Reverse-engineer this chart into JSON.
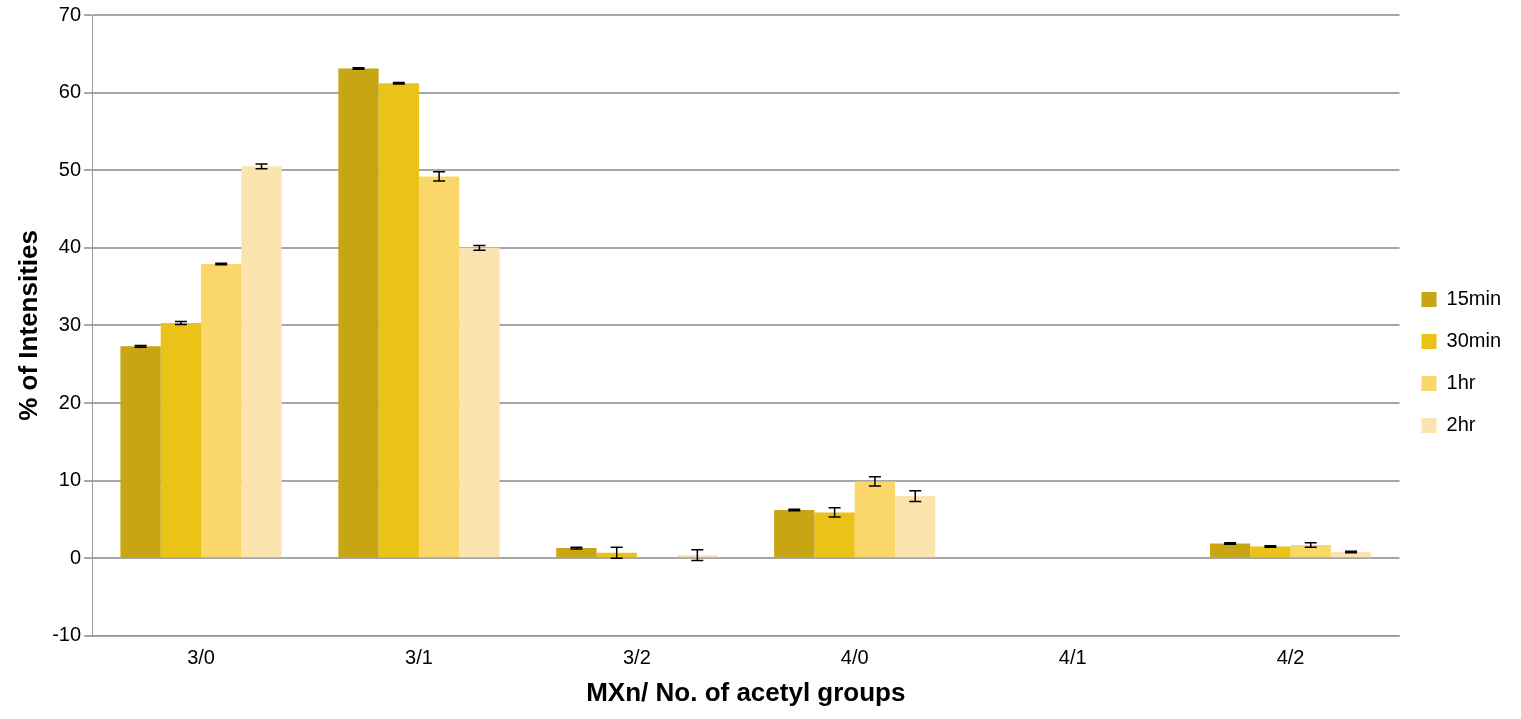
{
  "chart_data": {
    "type": "bar",
    "xlabel": "MXn/ No. of acetyl groups",
    "ylabel": "% of Intensities",
    "categories": [
      "3/0",
      "3/1",
      "3/2",
      "4/0",
      "4/1",
      "4/2"
    ],
    "series": [
      {
        "name": "15min",
        "color": "#c8a512",
        "values": [
          27.3,
          63.1,
          1.3,
          6.2,
          0,
          1.9
        ],
        "errors": [
          0.1,
          0.1,
          0.1,
          0.1,
          null,
          0.1
        ]
      },
      {
        "name": "30min",
        "color": "#ebc318",
        "values": [
          30.3,
          61.2,
          0.7,
          5.9,
          0,
          1.5
        ],
        "errors": [
          0.2,
          0.1,
          0.7,
          0.6,
          null,
          0.1
        ]
      },
      {
        "name": "1hr",
        "color": "#fbd76a",
        "values": [
          37.9,
          49.2,
          0,
          9.9,
          0,
          1.7
        ],
        "errors": [
          0.1,
          0.6,
          null,
          0.6,
          null,
          0.3
        ]
      },
      {
        "name": "2hr",
        "color": "#fbe4ae",
        "values": [
          50.5,
          40.0,
          0.4,
          8.0,
          0,
          0.8
        ],
        "errors": [
          0.3,
          0.3,
          0.7,
          0.7,
          null,
          0.1
        ]
      }
    ],
    "ylim": [
      -10,
      70
    ],
    "yticks": [
      -10,
      0,
      10,
      20,
      30,
      40,
      50,
      60,
      70
    ],
    "grid": "y",
    "legend": "right"
  }
}
